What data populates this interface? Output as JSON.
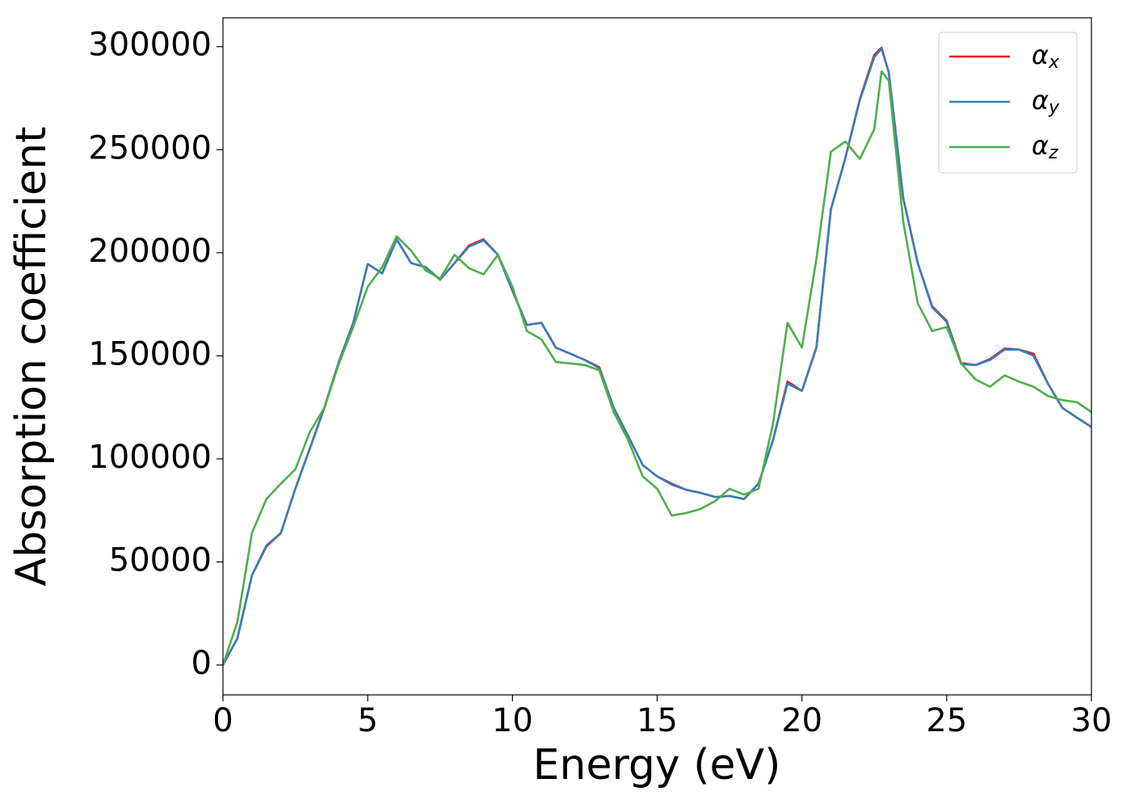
{
  "chart_data": {
    "type": "line",
    "xlabel": "Energy (eV)",
    "ylabel": "Absorption coefficient",
    "x": [
      0,
      0.5,
      1,
      1.5,
      2,
      2.5,
      3,
      3.5,
      4,
      4.5,
      5,
      5.5,
      6,
      6.5,
      7,
      7.5,
      8,
      8.5,
      9,
      9.5,
      10,
      10.5,
      11,
      11.5,
      12,
      12.5,
      13,
      13.5,
      14,
      14.5,
      15,
      15.5,
      16,
      16.5,
      17,
      17.5,
      18,
      18.5,
      19,
      19.5,
      20,
      20.5,
      21,
      21.5,
      22,
      22.5,
      22.75,
      23,
      23.5,
      24,
      24.5,
      25,
      25.5,
      26,
      26.5,
      27,
      27.5,
      28,
      28.5,
      29,
      29.5,
      30
    ],
    "series": [
      {
        "name": "αx",
        "color": "#e41a1c",
        "values": [
          0,
          13000,
          43500,
          57500,
          64000,
          85500,
          105000,
          124700,
          147000,
          166000,
          194500,
          190000,
          206500,
          195000,
          193000,
          187000,
          195000,
          203500,
          206500,
          199000,
          181500,
          165000,
          166000,
          154000,
          151000,
          148000,
          144500,
          124700,
          111000,
          97000,
          91500,
          88000,
          85000,
          83500,
          81500,
          82000,
          80500,
          88000,
          109000,
          137500,
          133000,
          154000,
          221000,
          246000,
          274500,
          296000,
          299500,
          287500,
          226500,
          195000,
          174000,
          167000,
          146500,
          145500,
          148500,
          153500,
          153000,
          151000,
          136500,
          124700,
          120000,
          115500
        ]
      },
      {
        "name": "αy",
        "color": "#377eb8",
        "values": [
          0,
          13000,
          43500,
          58000,
          64000,
          85500,
          105000,
          124700,
          147000,
          166000,
          194500,
          190000,
          206500,
          195000,
          193000,
          187000,
          195000,
          203000,
          206000,
          199000,
          181500,
          165000,
          166000,
          154000,
          151000,
          148000,
          144000,
          124700,
          111000,
          97000,
          91500,
          87500,
          85000,
          83500,
          81500,
          82000,
          80500,
          88000,
          109000,
          136500,
          133000,
          154000,
          221000,
          246000,
          274000,
          295000,
          299000,
          287500,
          226500,
          195000,
          173500,
          166500,
          146000,
          145500,
          148000,
          153000,
          153000,
          150000,
          136500,
          124700,
          120000,
          115500
        ]
      },
      {
        "name": "αz",
        "color": "#4daf4a",
        "values": [
          0,
          21000,
          64000,
          80500,
          88000,
          95000,
          113000,
          124700,
          146000,
          164000,
          183500,
          193000,
          208000,
          201000,
          191500,
          187500,
          199000,
          192500,
          189500,
          199000,
          183500,
          162000,
          158000,
          147000,
          146300,
          145500,
          143000,
          122700,
          109000,
          91500,
          85500,
          72500,
          73700,
          75700,
          79500,
          85500,
          82700,
          85500,
          117000,
          166000,
          154000,
          197000,
          249000,
          254000,
          245500,
          260000,
          288000,
          283500,
          215000,
          175500,
          162000,
          164000,
          146300,
          138500,
          135000,
          140500,
          137500,
          135000,
          130500,
          128500,
          127500,
          122700
        ]
      }
    ],
    "xlim": [
      0,
      30
    ],
    "xticks": [
      0,
      5,
      10,
      15,
      20,
      25,
      30
    ],
    "ylim": [
      -14500,
      314000
    ],
    "yticks": [
      0,
      50000,
      100000,
      150000,
      200000,
      250000,
      300000
    ],
    "grid": false,
    "legend": "upper right"
  }
}
